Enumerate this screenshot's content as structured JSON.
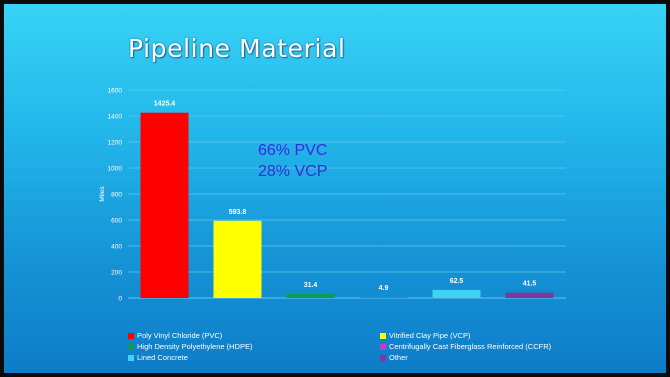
{
  "slide": {
    "title": "Pipeline Material"
  },
  "annotation": {
    "line1": "66% PVC",
    "line2": "28% VCP"
  },
  "chart_data": {
    "type": "bar",
    "ylabel": "Miles",
    "ylim": [
      0,
      1600
    ],
    "yticks": [
      0,
      200,
      400,
      600,
      800,
      1000,
      1200,
      1400,
      1600
    ],
    "grid": true,
    "legend_position": "bottom",
    "series": [
      {
        "name": "Poly Vinyl Chloride (PVC)",
        "value": 1425.4,
        "label": "1425.4",
        "color": "#ff0000"
      },
      {
        "name": "Vitrified Clay Pipe (VCP)",
        "value": 593.8,
        "label": "593.8",
        "color": "#ffff00"
      },
      {
        "name": "High Density Polyethylene (HDPE)",
        "value": 31.4,
        "label": "31.4",
        "color": "#0f9a55"
      },
      {
        "name": "Centrifugally Cast Fiberglass Reinforced (CCFR)",
        "value": 4.9,
        "label": "4.9",
        "color": "#c23bd3"
      },
      {
        "name": "Lined Concrete",
        "value": 62.5,
        "label": "62.5",
        "color": "#3fd2f5"
      },
      {
        "name": "Other",
        "value": 41.5,
        "label": "41.5",
        "color": "#7a3aa0"
      }
    ]
  }
}
